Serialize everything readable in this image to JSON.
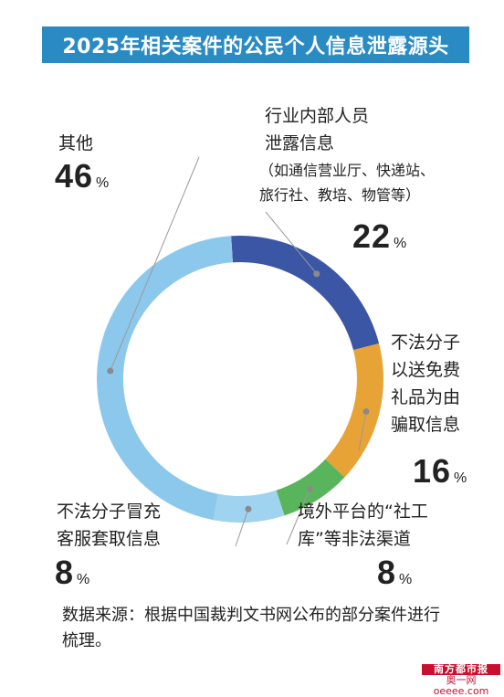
{
  "title": "2025年相关案件的公民个人信息泄露源头",
  "chart_data": {
    "type": "pie",
    "style": "donut",
    "slices": [
      {
        "label_lines": [
          "行业内部人员",
          "泄露信息"
        ],
        "sub_lines": [
          "（如通信营业厅、快递站、",
          "旅行社、教培、物管等）"
        ],
        "value": 22,
        "color": "#3c56a6"
      },
      {
        "label_lines": [
          "不法分子",
          "以送免费",
          "礼品为由",
          "骗取信息"
        ],
        "sub_lines": [],
        "value": 16,
        "color": "#e7a336"
      },
      {
        "label_lines": [
          "境外平台的“社工",
          "库”等非法渠道"
        ],
        "sub_lines": [],
        "value": 8,
        "color": "#59b55b"
      },
      {
        "label_lines": [
          "不法分子冒充",
          "客服套取信息"
        ],
        "sub_lines": [],
        "value": 8,
        "color": "#9fd3ef"
      },
      {
        "label_lines": [
          "其他"
        ],
        "sub_lines": [],
        "value": 46,
        "color": "#8cc8ec"
      }
    ],
    "value_suffix": "%"
  },
  "source_text": "数据来源：根据中国裁判文书网公布的部分案件进行梳理。",
  "logo": {
    "paper": "南方都市报",
    "site": "奥一网oeeee.com"
  }
}
